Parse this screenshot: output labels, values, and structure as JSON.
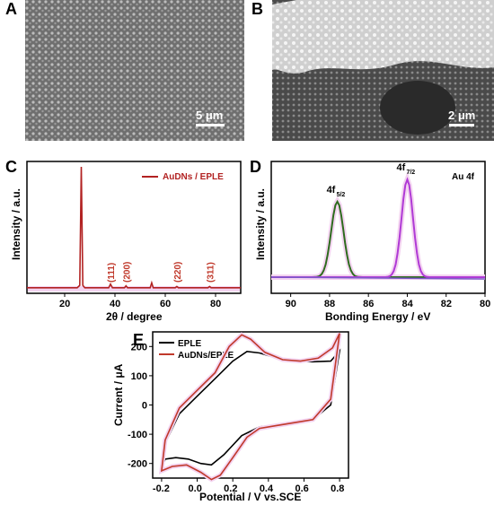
{
  "panels": {
    "A": {
      "letter": "A",
      "scale_bar": "5 μm"
    },
    "B": {
      "letter": "B",
      "scale_bar": "2 μm"
    },
    "C": {
      "letter": "C"
    },
    "D": {
      "letter": "D"
    },
    "E": {
      "letter": "E"
    }
  },
  "colors": {
    "xrd_line": "#b22222",
    "xps_green": "#2e6b1e",
    "xps_purple": "#b03ad6",
    "xps_baseline": "#7d5cc9",
    "cv_black": "#000000",
    "cv_red": "#c0392b",
    "highlight": "#f3d3f0"
  },
  "chart_data": [
    {
      "panel": "C",
      "type": "line",
      "xlabel": "2θ / degree",
      "ylabel": "Intensity / a.u.",
      "xlim": [
        5,
        90
      ],
      "xticks": [
        20,
        40,
        60,
        80
      ],
      "series": [
        {
          "name": "AuDNs / EPLE",
          "x": [
            5,
            25,
            26.0,
            26.6,
            27.2,
            28,
            37.5,
            38.2,
            39,
            43.8,
            44.4,
            45,
            54,
            54.6,
            55.2,
            64,
            64.6,
            65.2,
            77,
            77.6,
            78.2,
            90
          ],
          "y": [
            0.03,
            0.03,
            0.05,
            1.0,
            0.05,
            0.03,
            0.03,
            0.06,
            0.03,
            0.03,
            0.045,
            0.03,
            0.03,
            0.07,
            0.03,
            0.03,
            0.04,
            0.03,
            0.03,
            0.04,
            0.03,
            0.03
          ]
        }
      ],
      "annotations": [
        {
          "text": "(111)",
          "x": 38.2
        },
        {
          "text": "(200)",
          "x": 44.4
        },
        {
          "text": "(220)",
          "x": 64.6
        },
        {
          "text": "(311)",
          "x": 77.6
        }
      ]
    },
    {
      "panel": "D",
      "type": "line",
      "xlabel": "Bonding Energy / eV",
      "ylabel": "Intensity / a.u.",
      "xlim": [
        91,
        80
      ],
      "xticks": [
        90,
        88,
        86,
        84,
        82,
        80
      ],
      "title_text": "Au 4f",
      "peaks": [
        {
          "label_main": "4f",
          "label_sub": "5/2",
          "x": 87.6,
          "height": 0.72,
          "color_key": "xps_green"
        },
        {
          "label_main": "4f",
          "label_sub": "7/2",
          "x": 84.0,
          "height": 0.93,
          "color_key": "xps_purple"
        }
      ]
    },
    {
      "panel": "E",
      "type": "line",
      "xlabel": "Potential / V vs.SCE",
      "ylabel": "Current / μA",
      "xlim": [
        -0.25,
        0.85
      ],
      "ylim": [
        -250,
        250
      ],
      "xticks": [
        -0.2,
        0.0,
        0.2,
        0.4,
        0.6,
        0.8
      ],
      "yticks": [
        -200,
        -100,
        0,
        100,
        200
      ],
      "series": [
        {
          "name": "EPLE",
          "color_key": "cv_black",
          "x": [
            -0.2,
            -0.18,
            -0.1,
            0.0,
            0.1,
            0.2,
            0.28,
            0.35,
            0.45,
            0.55,
            0.65,
            0.75,
            0.8,
            0.8,
            0.75,
            0.65,
            0.55,
            0.45,
            0.35,
            0.25,
            0.15,
            0.08,
            0.02,
            -0.05,
            -0.12,
            -0.18,
            -0.2
          ],
          "y": [
            -215,
            -130,
            -30,
            30,
            90,
            150,
            183,
            178,
            160,
            150,
            148,
            150,
            185,
            185,
            0,
            -50,
            -62,
            -68,
            -75,
            -105,
            -170,
            -205,
            -200,
            -185,
            -180,
            -185,
            -215
          ]
        },
        {
          "name": "AuDNs/EPLE",
          "color_key": "cv_red",
          "x": [
            -0.2,
            -0.18,
            -0.1,
            0.0,
            0.1,
            0.18,
            0.25,
            0.3,
            0.38,
            0.48,
            0.58,
            0.68,
            0.76,
            0.8,
            0.8,
            0.75,
            0.65,
            0.55,
            0.45,
            0.35,
            0.28,
            0.2,
            0.13,
            0.08,
            0.02,
            -0.06,
            -0.14,
            -0.2
          ],
          "y": [
            -225,
            -120,
            -10,
            50,
            110,
            200,
            240,
            225,
            180,
            155,
            150,
            160,
            195,
            245,
            245,
            20,
            -50,
            -60,
            -70,
            -80,
            -110,
            -180,
            -240,
            -255,
            -230,
            -205,
            -210,
            -225
          ]
        }
      ]
    }
  ]
}
